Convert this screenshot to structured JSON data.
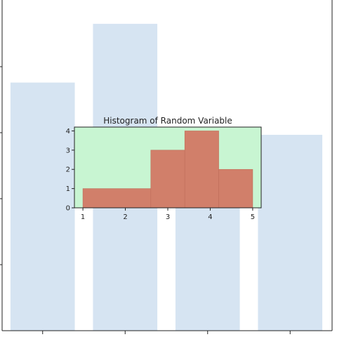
{
  "colors": {
    "background_bar": "#d6e4f2",
    "inset_face": "#c8f5d2",
    "histogram_bar": "#d17f6a",
    "histogram_edge": "#c06e5a",
    "axis": "#222222"
  },
  "chart_data": [
    {
      "type": "bar",
      "role": "background",
      "categories": [
        "",
        "",
        "",
        ""
      ],
      "values": [
        3.8,
        4.7,
        3.0,
        3.0
      ],
      "ylim": [
        0,
        5.0
      ],
      "title": "",
      "xlabel": "",
      "ylabel": "",
      "grid": false
    },
    {
      "type": "bar",
      "role": "inset-histogram",
      "title": "Histogram of Random Variable",
      "xlabel": "",
      "ylabel": "",
      "bins": [
        {
          "x0": 1.0,
          "x1": 2.6,
          "count": 1
        },
        {
          "x0": 2.6,
          "x1": 3.4,
          "count": 3
        },
        {
          "x0": 3.4,
          "x1": 4.2,
          "count": 4
        },
        {
          "x0": 4.2,
          "x1": 5.0,
          "count": 2
        }
      ],
      "xlim": [
        0.8,
        5.2
      ],
      "ylim": [
        0,
        4.2
      ],
      "x_ticks": [
        1,
        2,
        3,
        4,
        5
      ],
      "y_ticks": [
        0,
        1,
        2,
        3,
        4
      ],
      "grid": false
    }
  ]
}
